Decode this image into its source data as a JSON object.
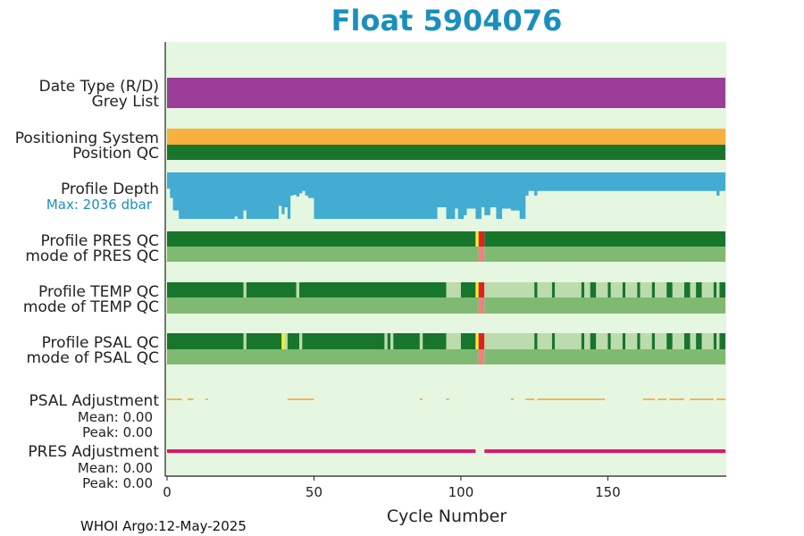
{
  "chart_data": {
    "type": "qc-strip",
    "title": "Float 5904076",
    "xlabel": "Cycle Number",
    "xlim": [
      0,
      190
    ],
    "xticks": [
      0,
      50,
      100,
      150
    ],
    "footer": "WHOI Argo:12-May-2025",
    "colors": {
      "background": "#e5f7e0",
      "good": "#18752c",
      "probably_good": "#bcdcad",
      "mode_good": "#80ba72",
      "bad": "#e02020",
      "flag_yellow": "#f2f020",
      "mode_bad": "#f08080",
      "date_type": "#9a3c98",
      "positioning": "#f8b040",
      "depth": "#42acd2",
      "psal_adjust": "#f0a030",
      "pres_adjust": "#e0186a"
    },
    "rows": {
      "date_type": {
        "label": "Date Type (R/D)",
        "color_key": "date_type",
        "segments": [
          [
            0,
            190
          ]
        ]
      },
      "grey_list": {
        "label": "Grey List"
      },
      "positioning": {
        "label": "Positioning System",
        "color_key": "positioning",
        "segments": [
          [
            0,
            190
          ]
        ]
      },
      "position_qc": {
        "label": "Position QC",
        "color_key": "good",
        "segments": [
          [
            0,
            190
          ]
        ]
      },
      "profile_depth": {
        "label": "Profile Depth",
        "max_label": "Max: 2036 dbar",
        "max_dbar": 2036,
        "depth_fraction": [
          [
            0,
            0.35
          ],
          [
            1,
            0.55
          ],
          [
            2,
            0.82
          ],
          [
            3,
            0.82
          ],
          [
            4,
            1.0
          ],
          [
            22,
            1.0
          ],
          [
            23,
            0.95
          ],
          [
            24,
            1.0
          ],
          [
            26,
            0.82
          ],
          [
            27,
            1.0
          ],
          [
            37,
            1.0
          ],
          [
            38,
            0.72
          ],
          [
            39,
            0.9
          ],
          [
            40,
            0.75
          ],
          [
            41,
            1.0
          ],
          [
            42,
            0.5
          ],
          [
            43,
            0.48
          ],
          [
            44,
            0.52
          ],
          [
            45,
            0.45
          ],
          [
            46,
            0.4
          ],
          [
            47,
            0.5
          ],
          [
            48,
            0.55
          ],
          [
            50,
            1.0
          ],
          [
            91,
            1.0
          ],
          [
            92,
            0.75
          ],
          [
            95,
            1.0
          ],
          [
            98,
            0.78
          ],
          [
            99,
            1.0
          ],
          [
            100,
            1.0
          ],
          [
            101,
            0.92
          ],
          [
            102,
            0.78
          ],
          [
            105,
            1.0
          ],
          [
            107,
            0.75
          ],
          [
            108,
            0.92
          ],
          [
            110,
            0.75
          ],
          [
            112,
            1.0
          ],
          [
            114,
            0.78
          ],
          [
            117,
            0.82
          ],
          [
            120,
            1.0
          ],
          [
            121,
            1.0
          ],
          [
            122,
            0.5
          ],
          [
            123,
            0.4
          ],
          [
            125,
            0.5
          ],
          [
            126,
            0.4
          ],
          [
            186,
            0.4
          ],
          [
            187,
            0.5
          ],
          [
            188,
            0.4
          ]
        ]
      },
      "pres_qc": {
        "label": "Profile PRES QC",
        "segments": [
          [
            0,
            105,
            "good"
          ],
          [
            105,
            106,
            "flag_yellow"
          ],
          [
            106,
            108,
            "bad"
          ],
          [
            108,
            190,
            "good"
          ]
        ]
      },
      "pres_mode": {
        "label": "mode of PRES QC",
        "segments": [
          [
            0,
            106,
            "mode_good"
          ],
          [
            106,
            108,
            "mode_bad"
          ],
          [
            108,
            190,
            "mode_good"
          ]
        ]
      },
      "temp_qc": {
        "label": "Profile TEMP QC",
        "segments": [
          [
            0,
            26,
            "good"
          ],
          [
            26,
            27,
            "probably_good"
          ],
          [
            27,
            44,
            "good"
          ],
          [
            44,
            45,
            "probably_good"
          ],
          [
            45,
            95,
            "good"
          ],
          [
            95,
            100,
            "probably_good"
          ],
          [
            100,
            105,
            "good"
          ],
          [
            105,
            106,
            "flag_yellow"
          ],
          [
            106,
            108,
            "bad"
          ],
          [
            108,
            125,
            "probably_good"
          ],
          [
            125,
            126,
            "good"
          ],
          [
            126,
            131,
            "probably_good"
          ],
          [
            131,
            132,
            "good"
          ],
          [
            132,
            141,
            "probably_good"
          ],
          [
            141,
            142,
            "good"
          ],
          [
            142,
            144,
            "probably_good"
          ],
          [
            144,
            146,
            "good"
          ],
          [
            146,
            150,
            "probably_good"
          ],
          [
            150,
            151,
            "good"
          ],
          [
            151,
            155,
            "probably_good"
          ],
          [
            155,
            156,
            "good"
          ],
          [
            156,
            160,
            "probably_good"
          ],
          [
            160,
            161,
            "good"
          ],
          [
            161,
            165,
            "probably_good"
          ],
          [
            165,
            166,
            "good"
          ],
          [
            166,
            170,
            "probably_good"
          ],
          [
            170,
            172,
            "good"
          ],
          [
            172,
            176,
            "probably_good"
          ],
          [
            176,
            178,
            "good"
          ],
          [
            178,
            180,
            "probably_good"
          ],
          [
            180,
            182,
            "good"
          ],
          [
            182,
            186,
            "probably_good"
          ],
          [
            186,
            187,
            "good"
          ],
          [
            187,
            188,
            "probably_good"
          ],
          [
            188,
            190,
            "good"
          ]
        ]
      },
      "temp_mode": {
        "label": "mode of TEMP QC",
        "segments": [
          [
            0,
            106,
            "mode_good"
          ],
          [
            106,
            108,
            "mode_bad"
          ],
          [
            108,
            190,
            "mode_good"
          ]
        ]
      },
      "psal_qc": {
        "label": "Profile PSAL QC",
        "segments": [
          [
            0,
            26,
            "good"
          ],
          [
            26,
            27,
            "probably_good"
          ],
          [
            27,
            39,
            "good"
          ],
          [
            39,
            40,
            "flag_yellow"
          ],
          [
            40,
            41,
            "probably_good"
          ],
          [
            41,
            45,
            "good"
          ],
          [
            45,
            46,
            "probably_good"
          ],
          [
            46,
            74,
            "good"
          ],
          [
            74,
            75,
            "probably_good"
          ],
          [
            75,
            76,
            "good"
          ],
          [
            76,
            77,
            "probably_good"
          ],
          [
            77,
            86,
            "good"
          ],
          [
            86,
            87,
            "probably_good"
          ],
          [
            87,
            95,
            "good"
          ],
          [
            95,
            100,
            "probably_good"
          ],
          [
            100,
            105,
            "good"
          ],
          [
            105,
            106,
            "flag_yellow"
          ],
          [
            106,
            108,
            "bad"
          ],
          [
            108,
            125,
            "probably_good"
          ],
          [
            125,
            126,
            "good"
          ],
          [
            126,
            131,
            "probably_good"
          ],
          [
            131,
            132,
            "good"
          ],
          [
            132,
            141,
            "probably_good"
          ],
          [
            141,
            142,
            "good"
          ],
          [
            142,
            144,
            "probably_good"
          ],
          [
            144,
            146,
            "good"
          ],
          [
            146,
            150,
            "probably_good"
          ],
          [
            150,
            151,
            "good"
          ],
          [
            151,
            155,
            "probably_good"
          ],
          [
            155,
            156,
            "good"
          ],
          [
            156,
            160,
            "probably_good"
          ],
          [
            160,
            161,
            "good"
          ],
          [
            161,
            165,
            "probably_good"
          ],
          [
            165,
            166,
            "good"
          ],
          [
            166,
            170,
            "probably_good"
          ],
          [
            170,
            172,
            "good"
          ],
          [
            172,
            176,
            "probably_good"
          ],
          [
            176,
            178,
            "good"
          ],
          [
            178,
            180,
            "probably_good"
          ],
          [
            180,
            182,
            "good"
          ],
          [
            182,
            186,
            "probably_good"
          ],
          [
            186,
            187,
            "good"
          ],
          [
            187,
            188,
            "probably_good"
          ],
          [
            188,
            190,
            "good"
          ]
        ]
      },
      "psal_mode": {
        "label": "mode of PSAL QC",
        "segments": [
          [
            0,
            106,
            "mode_good"
          ],
          [
            106,
            108,
            "mode_bad"
          ],
          [
            108,
            190,
            "mode_good"
          ]
        ]
      },
      "psal_adjustment": {
        "label": "PSAL Adjustment",
        "mean_label": "Mean: 0.00",
        "peak_label": "Peak: 0.00",
        "segments": [
          [
            0,
            5
          ],
          [
            7,
            9
          ],
          [
            13,
            14
          ],
          [
            41,
            50
          ],
          [
            86,
            87
          ],
          [
            95,
            96
          ],
          [
            117,
            118
          ],
          [
            122,
            125
          ],
          [
            126,
            148
          ],
          [
            148,
            149
          ],
          [
            162,
            166
          ],
          [
            167,
            170
          ],
          [
            171,
            176
          ],
          [
            178,
            186
          ],
          [
            187,
            190
          ]
        ]
      },
      "pres_adjustment": {
        "label": "PRES Adjustment",
        "mean_label": "Mean: 0.00",
        "peak_label": "Peak: 0.00",
        "segments": [
          [
            0,
            105
          ],
          [
            108,
            190
          ]
        ]
      }
    }
  }
}
